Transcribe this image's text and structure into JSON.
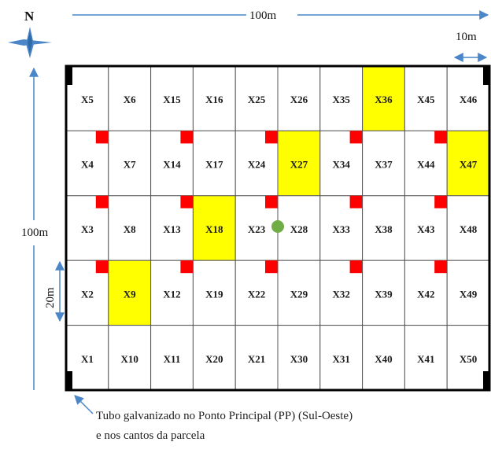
{
  "compass": {
    "label": "N"
  },
  "dimensions": {
    "top_width": "100m",
    "cell_width": "10m",
    "left_height": "100m",
    "cell_height": "20m"
  },
  "grid": {
    "columns": 10,
    "rows": 5,
    "cells": [
      [
        "X5",
        "X6",
        "X15",
        "X16",
        "X25",
        "X26",
        "X35",
        "X36",
        "X45",
        "X46"
      ],
      [
        "X4",
        "X7",
        "X14",
        "X17",
        "X24",
        "X27",
        "X34",
        "X37",
        "X44",
        "X47"
      ],
      [
        "X3",
        "X8",
        "X13",
        "X18",
        "X23",
        "X28",
        "X33",
        "X38",
        "X43",
        "X48"
      ],
      [
        "X2",
        "X9",
        "X12",
        "X19",
        "X22",
        "X29",
        "X32",
        "X39",
        "X42",
        "X49"
      ],
      [
        "X1",
        "X10",
        "X11",
        "X20",
        "X21",
        "X30",
        "X31",
        "X40",
        "X41",
        "X50"
      ]
    ],
    "highlighted": [
      "X36",
      "X27",
      "X47",
      "X18",
      "X9"
    ],
    "highlight_color": "#ffff00",
    "marker_color": "#ff0000",
    "point_color": "#70ad47"
  },
  "caption": {
    "line1": "Tubo galvanizado no Ponto Principal (PP) (Sul-Oeste)",
    "line2": "e nos cantos da parcela"
  }
}
